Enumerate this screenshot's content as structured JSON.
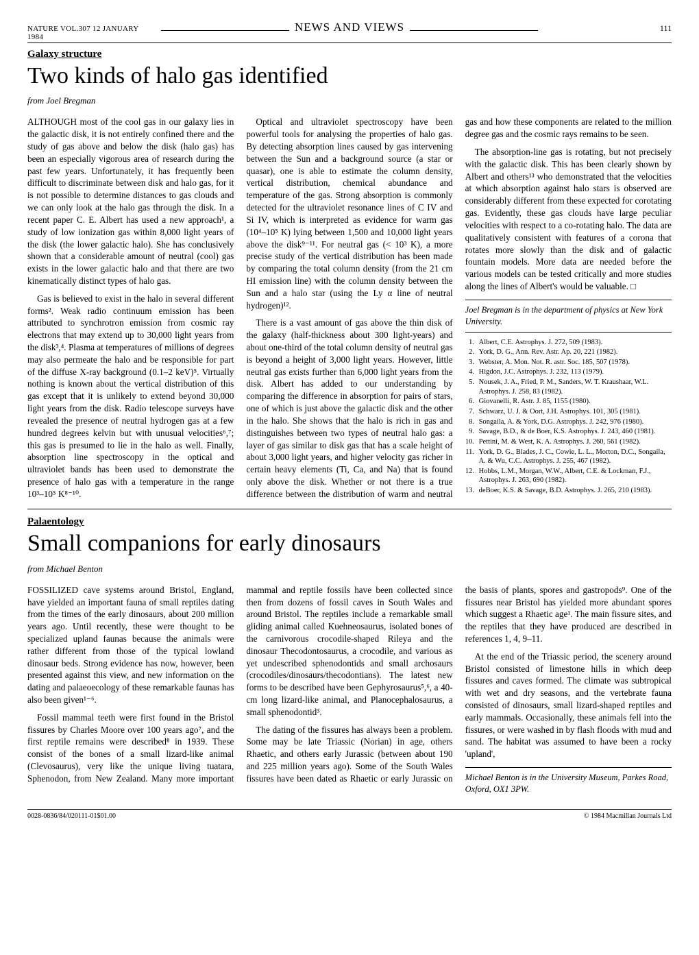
{
  "header": {
    "journal": "NATURE VOL.307 12 JANUARY 1984",
    "section": "NEWS AND VIEWS",
    "page": "111"
  },
  "article1": {
    "category": "Galaxy structure",
    "title": "Two kinds of halo gas identified",
    "byline": "from Joel Bregman",
    "p1": "ALTHOUGH most of the cool gas in our galaxy lies in the galactic disk, it is not entirely confined there and the study of gas above and below the disk (halo gas) has been an especially vigorous area of research during the past few years. Unfortunately, it has frequently been difficult to discriminate between disk and halo gas, for it is not possible to determine distances to gas clouds and we can only look at the halo gas through the disk. In a recent paper C. E. Albert has used a new approach¹, a study of low ionization gas within 8,000 light years of the disk (the lower galactic halo). She has conclusively shown that a considerable amount of neutral (cool) gas exists in the lower galactic halo and that there are two kinematically distinct types of halo gas.",
    "p2": "Gas is believed to exist in the halo in several different forms². Weak radio continuum emission has been attributed to synchrotron emission from cosmic ray electrons that may extend up to 30,000 light years from the disk³,⁴. Plasma at temperatures of millions of degrees may also permeate the halo and be responsible for part of the diffuse X-ray background (0.1–2 keV)⁵. Virtually nothing is known about the vertical distribution of this gas except that it is unlikely to extend beyond 30,000 light years from the disk. Radio telescope surveys have revealed the presence of neutral hydrogen gas at a few hundred degrees kelvin but with unusual velocities⁶,⁷; this gas is presumed to lie in the halo as well. Finally, absorption line spectroscopy in the optical and ultraviolet bands has been used to demonstrate the presence of halo gas with a temperature in the range 10³–10⁵ K⁸⁻¹⁰.",
    "p3": "Optical and ultraviolet spectroscopy have been powerful tools for analysing the properties of halo gas. By detecting absorption lines caused by gas intervening between the Sun and a background source (a star or quasar), one is able to estimate the column density, vertical distribution, chemical abundance and temperature of the gas. Strong absorption is commonly detected for the ultraviolet resonance lines of C IV and Si IV, which is interpreted as evidence for warm gas (10⁴–10⁵ K) lying between 1,500 and 10,000 light years above the disk⁹⁻¹¹. For neutral gas (< 10³ K), a more precise study of the vertical distribution has been made by comparing the total column density (from the 21 cm HI emission line) with the column density between the Sun and a halo star (using the Ly α line of neutral hydrogen)¹².",
    "p4": "There is a vast amount of gas above the thin disk of the galaxy (half-thickness about 300 light-years) and about one-third of the total column density of neutral gas is beyond a height of 3,000 light years. However, little neutral gas exists further than 6,000 light years from the disk. Albert has added to our understanding by comparing the difference in absorption for pairs of stars, one of which is just above the galactic disk and the other in the halo. She shows that the halo is rich in gas and distinguishes between two types of neutral halo gas: a layer of gas similar to disk gas that has a scale height of about 3,000 light years, and higher velocity gas richer in certain heavy elements (Ti, Ca, and Na) that is found only above the disk. Whether or not there is a true difference between the distribution of warm and neutral gas and how these components are related to the million degree gas and the cosmic rays remains to be seen.",
    "p5": "The absorption-line gas is rotating, but not precisely with the galactic disk. This has been clearly shown by Albert and others¹³ who demonstrated that the velocities at which absorption against halo stars is observed are considerably different from these expected for corotating gas. Evidently, these gas clouds have large peculiar velocities with respect to a co-rotating halo. The data are qualitatively consistent with features of a corona that rotates more slowly than the disk and of galactic fountain models. More data are needed before the various models can be tested critically and more studies along the lines of Albert's would be valuable.  □",
    "affiliation": "Joel Bregman is in the department of physics at New York University.",
    "refs": [
      "Albert, C.E. Astrophys. J. 272, 509 (1983).",
      "York, D. G., Ann. Rev. Astr. Ap. 20, 221 (1982).",
      "Webster, A. Mon. Not. R. astr. Soc. 185, 507 (1978).",
      "Higdon, J.C. Astrophys. J. 232, 113 (1979).",
      "Nousek, J. A., Fried, P. M., Sanders, W. T. Kraushaar, W.L. Astrophys. J. 258, 83 (1982).",
      "Giovanelli, R. Astr. J. 85, 1155 (1980).",
      "Schwarz, U. J. & Oort, J.H. Astrophys. 101, 305 (1981).",
      "Songaila, A. & York, D.G. Astrophys. J. 242, 976 (1980).",
      "Savage, B.D., & de Boer, K.S. Astrophys. J. 243, 460 (1981).",
      "Pettini, M. & West, K. A. Astrophys. J. 260, 561 (1982).",
      "York, D. G., Blades, J. C., Cowie, L. L., Morton, D.C., Songaila, A. & Wu, C.C. Astrophys. J. 255, 467 (1982).",
      "Hobbs, L.M., Morgan, W.W., Albert, C.E. & Lockman, F.J., Astrophys. J. 263, 690 (1982).",
      "deBoer, K.S. & Savage, B.D. Astrophys. J. 265, 210 (1983)."
    ]
  },
  "article2": {
    "category": "Palaentology",
    "title": "Small companions for early dinosaurs",
    "byline": "from Michael Benton",
    "p1": "FOSSILIZED cave systems around Bristol, England, have yielded an important fauna of small reptiles dating from the times of the early dinosaurs, about 200 million years ago. Until recently, these were thought to be specialized upland faunas because the animals were rather different from those of the typical lowland dinosaur beds. Strong evidence has now, however, been presented against this view, and new information on the dating and palaeoecology of these remarkable faunas has also been given¹⁻⁶.",
    "p2": "Fossil mammal teeth were first found in the Bristol fissures by Charles Moore over 100 years ago⁷, and the first reptile remains were described⁸ in 1939. These consist of the bones of a small lizard-like animal (Clevosaurus), very like the unique living tuatara, Sphenodon, from New Zealand. Many more important mammal and reptile fossils have been collected since then from dozens of fossil caves in South Wales and around Bristol. The reptiles include a remarkable small gliding animal called Kuehneosaurus, isolated bones of the carnivorous crocodile-shaped Rileya and the dinosaur Thecodontosaurus, a crocodile, and various as yet undescribed sphenodontids and small archosaurs (crocodiles/dinosaurs/thecodontians). The latest new forms to be described have been Gephyrosaurus⁵,⁶, a 40-cm long lizard-like animal, and Planocephalosaurus, a small sphenodontid³.",
    "p3": "The dating of the fissures has always been a problem. Some may be late Triassic (Norian) in age, others Rhaetic, and others early Jurassic (between about 190 and 225 million years ago). Some of the South Wales fissures have been dated as Rhaetic or early Jurassic on the basis of plants, spores and gastropods⁹. One of the fissures near Bristol has yielded more abundant spores which suggest a Rhaetic age¹. The main fissure sites, and the reptiles that they have produced are described in references 1, 4, 9–11.",
    "p4": "At the end of the Triassic period, the scenery around Bristol consisted of limestone hills in which deep fissures and caves formed. The climate was subtropical with wet and dry seasons, and the vertebrate fauna consisted of dinosaurs, small lizard-shaped reptiles and early mammals. Occasionally, these animals fell into the fissures, or were washed in by flash floods with mud and sand. The habitat was assumed to have been a rocky 'upland',",
    "affiliation": "Michael Benton is in the University Museum, Parkes Road, Oxford, OX1 3PW."
  },
  "footer": {
    "left": "0028-0836/84/020111-01$01.00",
    "right": "© 1984 Macmillan Journals Ltd"
  }
}
